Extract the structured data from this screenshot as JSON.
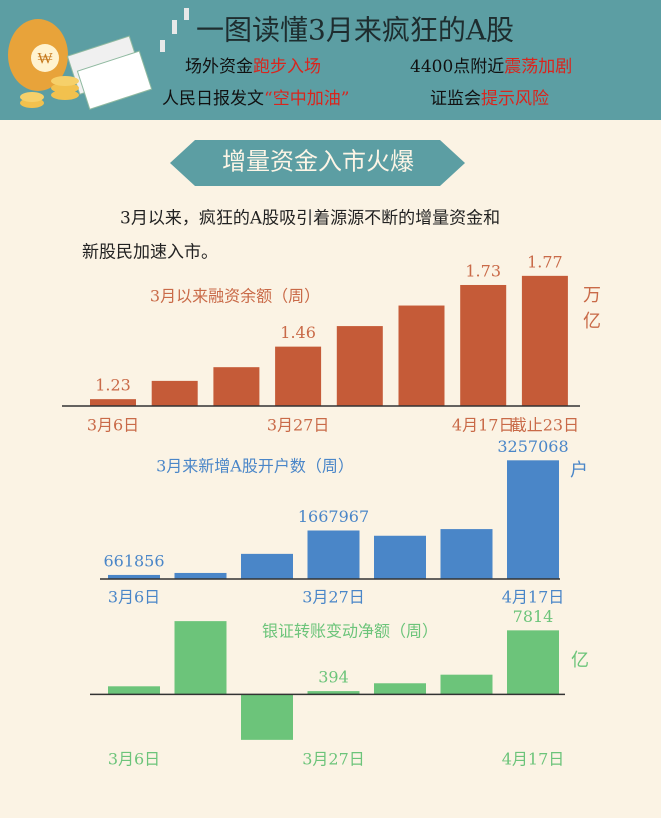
{
  "header": {
    "title": "一图读懂3月来疯狂的A股",
    "items": [
      [
        "场外资金",
        "跑步入场"
      ],
      [
        "4400点附近",
        "震荡加剧"
      ],
      [
        "人民日报发文",
        "“空中加油”"
      ],
      [
        "证监会",
        "提示风险"
      ]
    ]
  },
  "section": "增量资金入市火爆",
  "intro": [
    "3月以来，疯狂的A股吸引着源源不断的增量资金和",
    "新股民加速入市。"
  ],
  "chart_data": [
    {
      "type": "bar",
      "title": "3月以来融资余额（周）",
      "unit": "万亿",
      "color": "#c55b38",
      "categories": [
        "3月6日",
        null,
        null,
        "3月27日",
        null,
        null,
        "4月17日",
        "截止23日"
      ],
      "values": [
        1.23,
        1.31,
        1.37,
        1.46,
        1.55,
        1.64,
        1.73,
        1.77
      ],
      "value_labels": [
        "1.23",
        null,
        null,
        "1.46",
        null,
        null,
        "1.73",
        "1.77"
      ],
      "ylim": [
        1.2,
        1.8
      ]
    },
    {
      "type": "bar",
      "title": "3月来新增A股开户数（周）",
      "unit": "户",
      "color": "#4a86c8",
      "categories": [
        "3月6日",
        null,
        null,
        "3月27日",
        null,
        null,
        "4月17日"
      ],
      "values": [
        661856,
        707000,
        1139000,
        1667967,
        1549000,
        1700000,
        3257068
      ],
      "value_labels": [
        "661856",
        null,
        null,
        "1667967",
        null,
        null,
        "3257068"
      ],
      "ylim": [
        570000,
        3400000
      ]
    },
    {
      "type": "bar",
      "title": "银证转账变动净额（周）",
      "unit": "亿",
      "color": "#6cc47a",
      "categories": [
        "3月6日",
        null,
        null,
        "3月27日",
        null,
        null,
        "4月17日"
      ],
      "values": [
        980,
        8940,
        -5560,
        394,
        1350,
        2400,
        7814
      ],
      "value_labels": [
        null,
        null,
        null,
        "394",
        null,
        null,
        "7814"
      ],
      "ylim": [
        -5700,
        9200
      ]
    }
  ]
}
